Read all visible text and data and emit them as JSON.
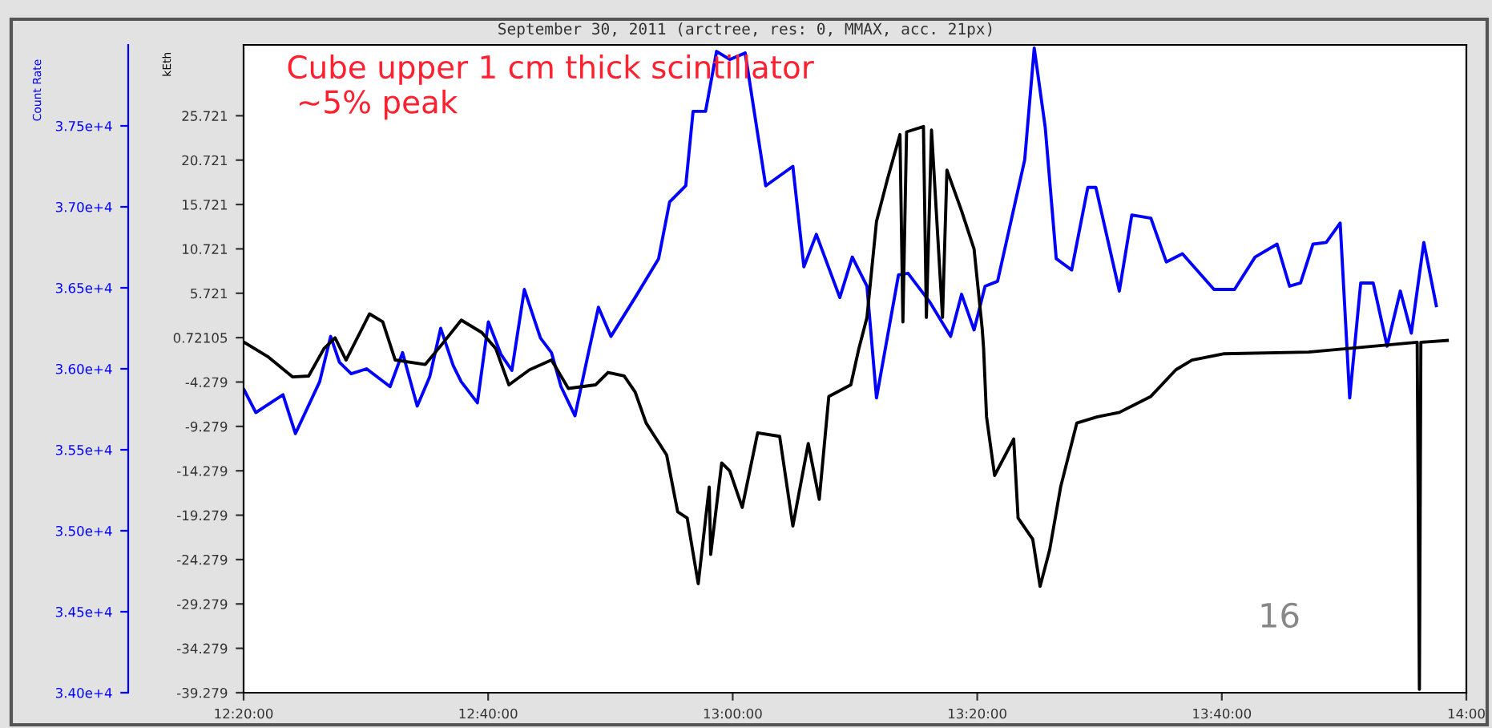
{
  "chart_data": {
    "type": "line",
    "title": "September 30, 2011 (arctree, res: 0, MMAX, acc. 21px)",
    "ylabel": "kEth",
    "y2label": "Count Rate",
    "annotations": [
      "Cube upper 1 cm thick scintillator\n ~5% peak",
      "16"
    ],
    "xlim": [
      12.333333,
      14.0
    ],
    "xticks": [
      {
        "value": 12.333333,
        "label": "12:20:00"
      },
      {
        "value": 12.666667,
        "label": "12:40:00"
      },
      {
        "value": 13.0,
        "label": "13:00:00"
      },
      {
        "value": 13.333333,
        "label": "13:20:00"
      },
      {
        "value": 13.666667,
        "label": "13:40:00"
      },
      {
        "value": 14.0,
        "label": "14:00"
      }
    ],
    "ylim": [
      -39.279,
      33.7
    ],
    "yticks": [
      25.721,
      20.721,
      15.721,
      10.721,
      5.721,
      {
        "value": 0.72105,
        "label": "0.72105"
      },
      -4.279,
      -9.279,
      -14.279,
      -19.279,
      -24.279,
      -29.279,
      -34.279,
      -39.279
    ],
    "y2lim": [
      34000,
      38000
    ],
    "y2ticks": [
      {
        "value": 34000,
        "label": "3.40e+4"
      },
      {
        "value": 34500,
        "label": "3.45e+4"
      },
      {
        "value": 35000,
        "label": "3.50e+4"
      },
      {
        "value": 35500,
        "label": "3.55e+4"
      },
      {
        "value": 36000,
        "label": "3.60e+4"
      },
      {
        "value": 36500,
        "label": "3.65e+4"
      },
      {
        "value": 37000,
        "label": "3.70e+4"
      },
      {
        "value": 37500,
        "label": "3.75e+4"
      }
    ],
    "grid": false,
    "marker": "none",
    "line_style": "solid",
    "series": [
      {
        "color": "#0000ff",
        "axis": "y2",
        "x": [
          12.334,
          12.35,
          12.387,
          12.404,
          12.437,
          12.452,
          12.464,
          12.48,
          12.501,
          12.533,
          12.55,
          12.57,
          12.587,
          12.602,
          12.619,
          12.63,
          12.652,
          12.667,
          12.684,
          12.699,
          12.716,
          12.738,
          12.753,
          12.766,
          12.785,
          12.802,
          12.817,
          12.834,
          12.867,
          12.899,
          12.914,
          12.936,
          12.946,
          12.963,
          12.978,
          12.996,
          13.017,
          13.045,
          13.082,
          13.097,
          13.114,
          13.146,
          13.163,
          13.183,
          13.196,
          13.226,
          13.239,
          13.269,
          13.297,
          13.312,
          13.329,
          13.344,
          13.361,
          13.398,
          13.411,
          13.426,
          13.441,
          13.462,
          13.484,
          13.495,
          13.527,
          13.544,
          13.57,
          13.591,
          13.613,
          13.656,
          13.684,
          13.712,
          13.742,
          13.759,
          13.774,
          13.791,
          13.809,
          13.828,
          13.841,
          13.856,
          13.873,
          13.892,
          13.91,
          13.925,
          13.942,
          13.959
        ],
        "values": [
          35870,
          35730,
          35840,
          35600,
          35920,
          36200,
          36040,
          35970,
          36000,
          35890,
          36100,
          35770,
          35950,
          36250,
          36020,
          35920,
          35790,
          36290,
          36090,
          35990,
          36490,
          36190,
          36100,
          35890,
          35710,
          36070,
          36380,
          36200,
          36440,
          36680,
          37030,
          37130,
          37590,
          37590,
          37960,
          37910,
          37950,
          37130,
          37250,
          36630,
          36830,
          36440,
          36690,
          36510,
          35820,
          36580,
          36590,
          36410,
          36200,
          36460,
          36240,
          36510,
          36540,
          37290,
          37980,
          37490,
          36680,
          36610,
          37120,
          37120,
          36480,
          36950,
          36930,
          36660,
          36710,
          36490,
          36490,
          36690,
          36770,
          36510,
          36530,
          36770,
          36780,
          36900,
          35820,
          36530,
          36530,
          36140,
          36480,
          36220,
          36780,
          36390
        ]
      },
      {
        "color": "#000000",
        "axis": "y",
        "x": [
          12.334,
          12.366,
          12.4,
          12.422,
          12.443,
          12.458,
          12.473,
          12.505,
          12.523,
          12.54,
          12.581,
          12.604,
          12.63,
          12.658,
          12.677,
          12.695,
          12.723,
          12.753,
          12.776,
          12.813,
          12.83,
          12.852,
          12.867,
          12.882,
          12.91,
          12.925,
          12.938,
          12.953,
          12.968,
          12.97,
          12.985,
          12.996,
          13.013,
          13.034,
          13.064,
          13.082,
          13.103,
          13.118,
          13.131,
          13.161,
          13.172,
          13.183,
          13.196,
          13.211,
          13.228,
          13.232,
          13.237,
          13.26,
          13.264,
          13.271,
          13.286,
          13.292,
          13.312,
          13.329,
          13.34,
          13.342,
          13.346,
          13.357,
          13.383,
          13.389,
          13.409,
          13.419,
          13.432,
          13.447,
          13.469,
          13.497,
          13.527,
          13.57,
          13.604,
          13.626,
          13.669,
          13.785,
          13.933,
          13.936,
          13.938,
          13.974
        ],
        "values": [
          0.2,
          -1.4,
          -3.7,
          -3.6,
          -0.5,
          0.7,
          -1.8,
          3.4,
          2.5,
          -1.8,
          -2.3,
          0.0,
          2.7,
          1.3,
          -0.5,
          -4.6,
          -2.9,
          -1.8,
          -5.0,
          -4.6,
          -3.2,
          -3.6,
          -5.4,
          -8.9,
          -12.5,
          -18.9,
          -19.6,
          -27.0,
          -16.1,
          -23.7,
          -13.4,
          -14.3,
          -18.4,
          -10.0,
          -10.4,
          -20.5,
          -11.2,
          -17.5,
          -5.9,
          -4.6,
          -0.5,
          3.0,
          13.8,
          18.6,
          23.6,
          2.5,
          23.9,
          24.5,
          3.0,
          24.1,
          3.0,
          19.6,
          15.0,
          10.7,
          1.8,
          -0.5,
          -8.2,
          -14.8,
          -10.7,
          -19.6,
          -22.0,
          -27.3,
          -23.2,
          -16.1,
          -8.9,
          -8.2,
          -7.7,
          -5.9,
          -2.9,
          -1.8,
          -1.1,
          -0.9,
          0.2,
          -38.9,
          0.2,
          0.4
        ]
      }
    ]
  }
}
